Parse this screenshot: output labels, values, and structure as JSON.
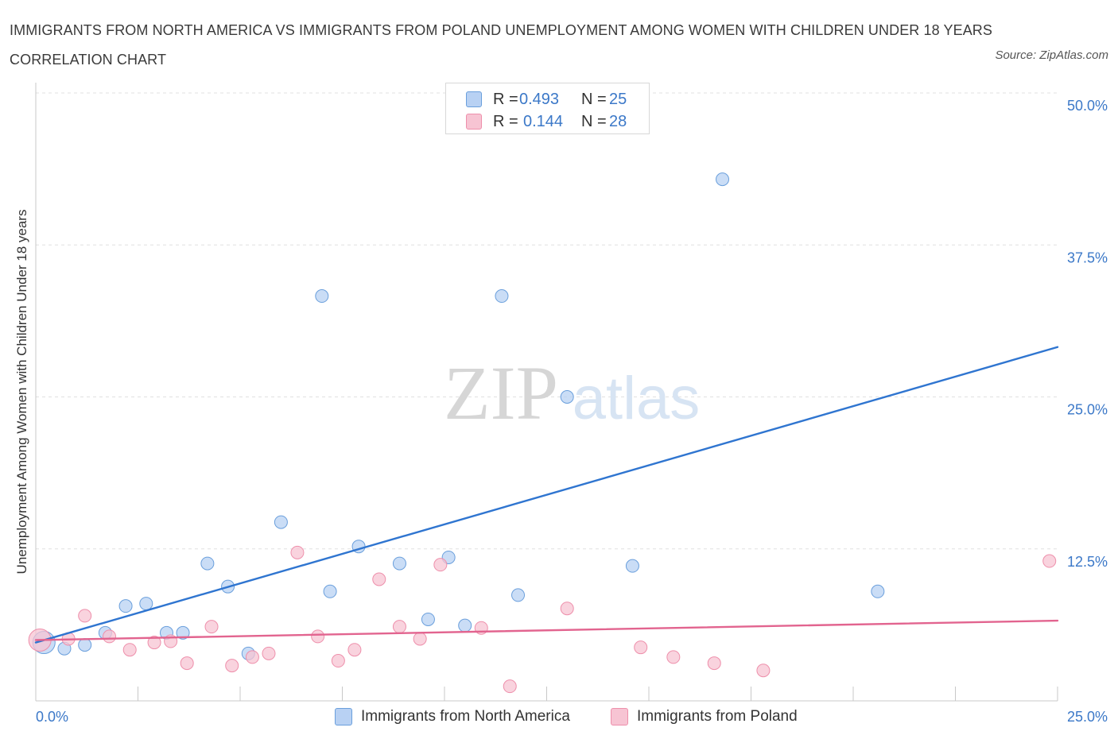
{
  "header": {
    "title": "IMMIGRANTS FROM NORTH AMERICA VS IMMIGRANTS FROM POLAND UNEMPLOYMENT AMONG WOMEN WITH CHILDREN UNDER 18 YEARS CORRELATION CHART",
    "source": "Source: ZipAtlas.com"
  },
  "watermark": {
    "zip": "ZIP",
    "atlas": "atlas"
  },
  "legend": {
    "north_america": {
      "r_label": "R =",
      "r_value": "0.493",
      "n_label": "N =",
      "n_value": "25"
    },
    "poland": {
      "r_label": "R =",
      "r_value": "0.144",
      "n_label": "N =",
      "n_value": "28"
    }
  },
  "bottom_legend": {
    "north_america": "Immigrants from North America",
    "poland": "Immigrants from Poland"
  },
  "colors": {
    "north_america_fill": "#b8d1f3",
    "north_america_stroke": "#6a9fdc",
    "north_america_line": "#2f75d0",
    "poland_fill": "#f7c4d3",
    "poland_stroke": "#ee8fab",
    "poland_line": "#e2648f",
    "tick_label": "#3b78c8",
    "grid": "#e0e0e0"
  },
  "chart_data": {
    "type": "scatter",
    "title": "IMMIGRANTS FROM NORTH AMERICA VS IMMIGRANTS FROM POLAND UNEMPLOYMENT AMONG WOMEN WITH CHILDREN UNDER 18 YEARS CORRELATION CHART",
    "xlabel": "",
    "ylabel": "Unemployment Among Women with Children Under 18 years",
    "xlim": [
      0,
      25
    ],
    "ylim": [
      0,
      50
    ],
    "x_tick_labels": [
      "0.0%",
      "25.0%"
    ],
    "y_ticks": [
      12.5,
      25.0,
      37.5,
      50.0
    ],
    "y_tick_labels": [
      "12.5%",
      "25.0%",
      "37.5%",
      "50.0%"
    ],
    "grid": true,
    "legend_position": "top-center",
    "series": [
      {
        "name": "Immigrants from North America",
        "r": 0.493,
        "n": 25,
        "trend": {
          "x": [
            0,
            25
          ],
          "y": [
            4.8,
            29.1
          ]
        },
        "points": [
          {
            "x": 0.2,
            "y": 4.8,
            "big": true
          },
          {
            "x": 0.7,
            "y": 4.3
          },
          {
            "x": 1.2,
            "y": 4.6
          },
          {
            "x": 1.7,
            "y": 5.6
          },
          {
            "x": 2.2,
            "y": 7.8
          },
          {
            "x": 2.7,
            "y": 8.0
          },
          {
            "x": 3.2,
            "y": 5.6
          },
          {
            "x": 3.6,
            "y": 5.6
          },
          {
            "x": 4.2,
            "y": 11.3
          },
          {
            "x": 4.7,
            "y": 9.4
          },
          {
            "x": 5.2,
            "y": 3.9
          },
          {
            "x": 6.0,
            "y": 14.7
          },
          {
            "x": 7.0,
            "y": 33.3
          },
          {
            "x": 7.2,
            "y": 9.0
          },
          {
            "x": 7.9,
            "y": 12.7
          },
          {
            "x": 8.9,
            "y": 11.3
          },
          {
            "x": 9.6,
            "y": 6.7
          },
          {
            "x": 10.1,
            "y": 11.8
          },
          {
            "x": 10.5,
            "y": 6.2
          },
          {
            "x": 11.4,
            "y": 33.3
          },
          {
            "x": 11.8,
            "y": 8.7
          },
          {
            "x": 13.0,
            "y": 25.0
          },
          {
            "x": 14.6,
            "y": 11.1
          },
          {
            "x": 16.8,
            "y": 42.9
          },
          {
            "x": 20.6,
            "y": 9.0
          }
        ]
      },
      {
        "name": "Immigrants from Poland",
        "r": 0.144,
        "n": 28,
        "trend": {
          "x": [
            0,
            25
          ],
          "y": [
            5.0,
            6.6
          ]
        },
        "points": [
          {
            "x": 0.1,
            "y": 5.0,
            "big": true
          },
          {
            "x": 0.8,
            "y": 5.1
          },
          {
            "x": 1.2,
            "y": 7.0
          },
          {
            "x": 1.8,
            "y": 5.3
          },
          {
            "x": 2.3,
            "y": 4.2
          },
          {
            "x": 2.9,
            "y": 4.8
          },
          {
            "x": 3.3,
            "y": 4.9
          },
          {
            "x": 3.7,
            "y": 3.1
          },
          {
            "x": 4.3,
            "y": 6.1
          },
          {
            "x": 4.8,
            "y": 2.9
          },
          {
            "x": 5.3,
            "y": 3.6
          },
          {
            "x": 5.7,
            "y": 3.9
          },
          {
            "x": 6.4,
            "y": 12.2
          },
          {
            "x": 6.9,
            "y": 5.3
          },
          {
            "x": 7.4,
            "y": 3.3
          },
          {
            "x": 7.8,
            "y": 4.2
          },
          {
            "x": 8.4,
            "y": 10.0
          },
          {
            "x": 8.9,
            "y": 6.1
          },
          {
            "x": 9.4,
            "y": 5.1
          },
          {
            "x": 9.9,
            "y": 11.2
          },
          {
            "x": 10.9,
            "y": 6.0
          },
          {
            "x": 11.6,
            "y": 1.2
          },
          {
            "x": 13.0,
            "y": 7.6
          },
          {
            "x": 14.8,
            "y": 4.4
          },
          {
            "x": 15.6,
            "y": 3.6
          },
          {
            "x": 16.6,
            "y": 3.1
          },
          {
            "x": 17.8,
            "y": 2.5
          },
          {
            "x": 24.8,
            "y": 11.5
          }
        ]
      }
    ]
  }
}
